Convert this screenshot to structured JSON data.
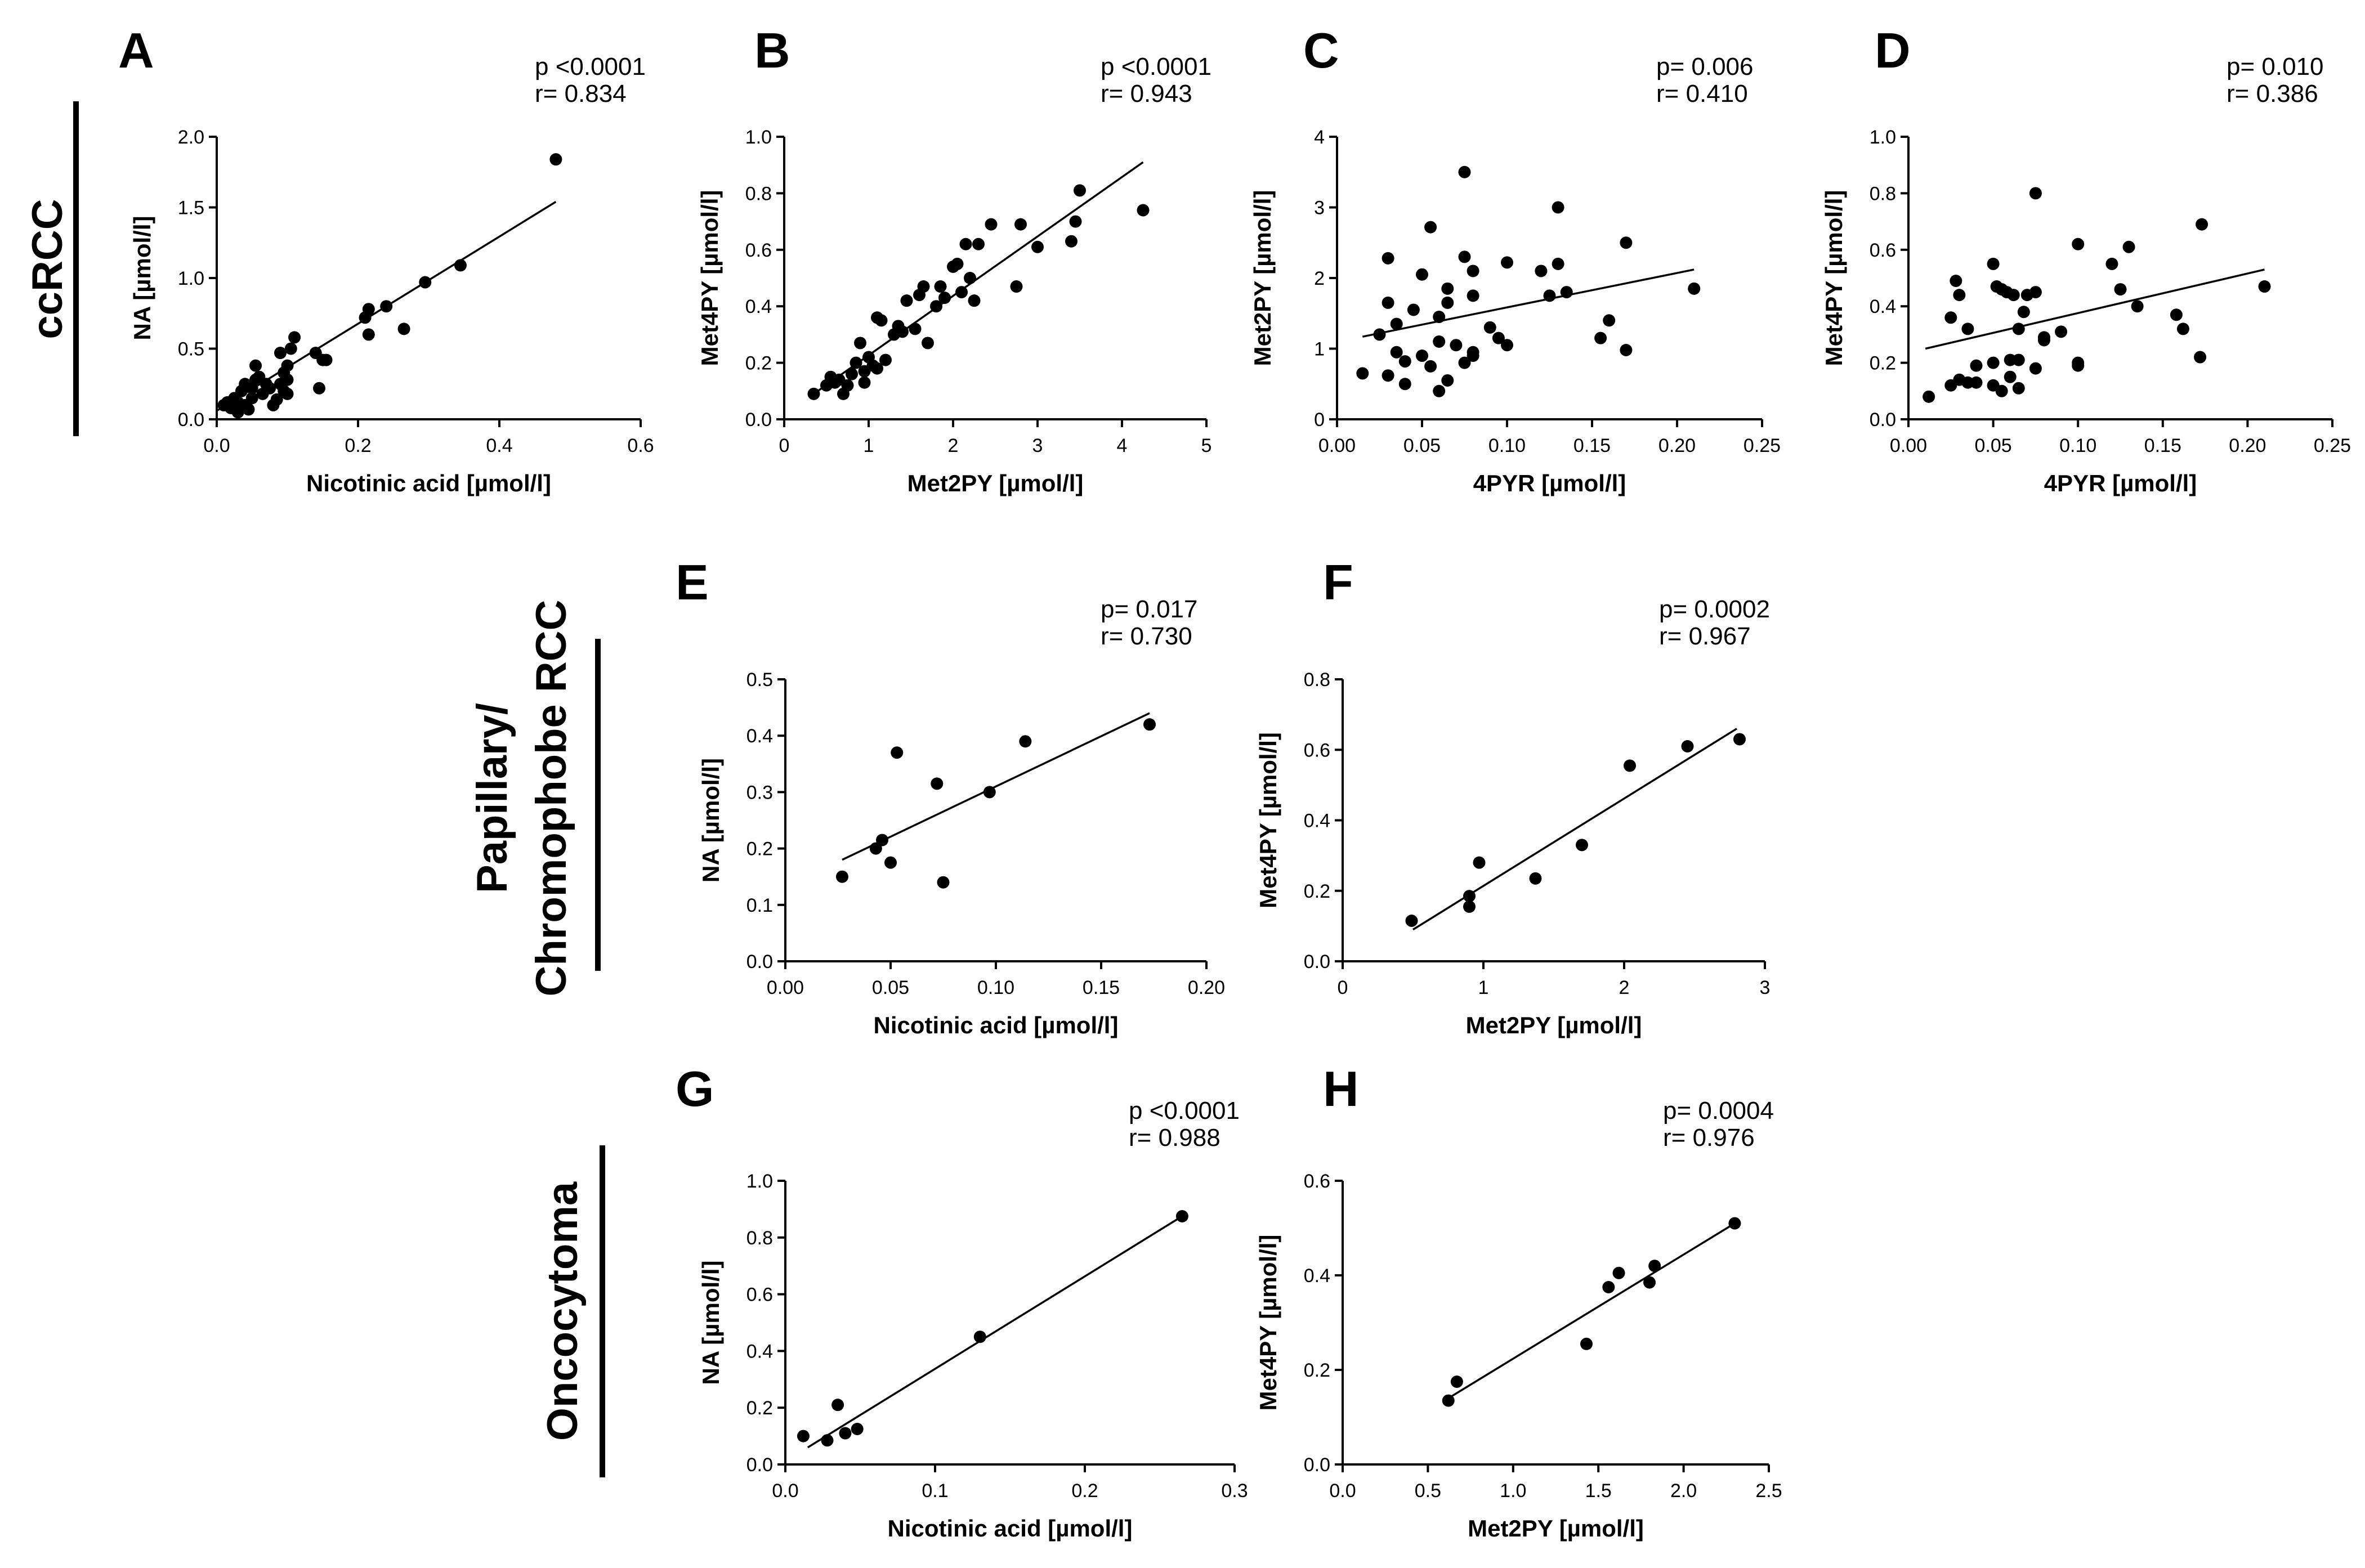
{
  "group_labels": [
    "ccRCC",
    "Papillary/",
    "Chromophobe RCC",
    "Oncocytoma"
  ],
  "chart_data": [
    {
      "id": "A",
      "type": "scatter",
      "letter": "A",
      "stat_p": "p <0.0001",
      "stat_r": "r= 0.834",
      "xlabel": "Nicotinic acid [µmol/l]",
      "ylabel": "NA [µmol/l]",
      "xlim": [
        0,
        0.6
      ],
      "ylim": [
        0,
        2.0
      ],
      "xticks": [
        0,
        0.2,
        0.4,
        0.6
      ],
      "xtick_labels": [
        "0.0",
        "0.2",
        "0.4",
        "0.6"
      ],
      "yticks": [
        0,
        0.5,
        1.0,
        1.5,
        2.0
      ],
      "ytick_labels": [
        "0.0",
        "0.5",
        "1.0",
        "1.5",
        "2.0"
      ],
      "fit": [
        [
          0.0,
          0.06
        ],
        [
          0.48,
          1.54
        ]
      ],
      "points": [
        [
          0.01,
          0.1
        ],
        [
          0.015,
          0.12
        ],
        [
          0.02,
          0.08
        ],
        [
          0.025,
          0.15
        ],
        [
          0.03,
          0.05
        ],
        [
          0.03,
          0.12
        ],
        [
          0.035,
          0.2
        ],
        [
          0.04,
          0.1
        ],
        [
          0.04,
          0.25
        ],
        [
          0.045,
          0.07
        ],
        [
          0.05,
          0.15
        ],
        [
          0.05,
          0.22
        ],
        [
          0.055,
          0.28
        ],
        [
          0.055,
          0.38
        ],
        [
          0.06,
          0.3
        ],
        [
          0.065,
          0.18
        ],
        [
          0.07,
          0.25
        ],
        [
          0.075,
          0.22
        ],
        [
          0.08,
          0.1
        ],
        [
          0.085,
          0.14
        ],
        [
          0.09,
          0.25
        ],
        [
          0.09,
          0.47
        ],
        [
          0.095,
          0.2
        ],
        [
          0.095,
          0.33
        ],
        [
          0.1,
          0.18
        ],
        [
          0.1,
          0.28
        ],
        [
          0.1,
          0.38
        ],
        [
          0.105,
          0.5
        ],
        [
          0.11,
          0.58
        ],
        [
          0.14,
          0.47
        ],
        [
          0.145,
          0.22
        ],
        [
          0.15,
          0.42
        ],
        [
          0.155,
          0.42
        ],
        [
          0.21,
          0.72
        ],
        [
          0.215,
          0.78
        ],
        [
          0.215,
          0.6
        ],
        [
          0.24,
          0.8
        ],
        [
          0.265,
          0.64
        ],
        [
          0.295,
          0.97
        ],
        [
          0.345,
          1.09
        ],
        [
          0.48,
          1.84
        ]
      ]
    },
    {
      "id": "B",
      "type": "scatter",
      "letter": "B",
      "stat_p": "p <0.0001",
      "stat_r": "r= 0.943",
      "xlabel": "Met2PY [µmol/l]",
      "ylabel": "Met4PY [µmol/l]",
      "xlim": [
        0,
        5
      ],
      "ylim": [
        0,
        1.0
      ],
      "xticks": [
        0,
        1,
        2,
        3,
        4,
        5
      ],
      "xtick_labels": [
        "0",
        "1",
        "2",
        "3",
        "4",
        "5"
      ],
      "yticks": [
        0,
        0.2,
        0.4,
        0.6,
        0.8,
        1.0
      ],
      "ytick_labels": [
        "0.0",
        "0.2",
        "0.4",
        "0.6",
        "0.8",
        "1.0"
      ],
      "fit": [
        [
          0.35,
          0.09
        ],
        [
          4.25,
          0.91
        ]
      ],
      "points": [
        [
          0.35,
          0.09
        ],
        [
          0.5,
          0.12
        ],
        [
          0.55,
          0.15
        ],
        [
          0.6,
          0.13
        ],
        [
          0.65,
          0.14
        ],
        [
          0.7,
          0.09
        ],
        [
          0.75,
          0.12
        ],
        [
          0.8,
          0.16
        ],
        [
          0.85,
          0.2
        ],
        [
          0.9,
          0.27
        ],
        [
          0.95,
          0.17
        ],
        [
          0.95,
          0.13
        ],
        [
          1.0,
          0.22
        ],
        [
          1.05,
          0.19
        ],
        [
          1.1,
          0.18
        ],
        [
          1.1,
          0.36
        ],
        [
          1.15,
          0.35
        ],
        [
          1.2,
          0.21
        ],
        [
          1.3,
          0.3
        ],
        [
          1.35,
          0.33
        ],
        [
          1.4,
          0.31
        ],
        [
          1.45,
          0.42
        ],
        [
          1.55,
          0.32
        ],
        [
          1.6,
          0.44
        ],
        [
          1.65,
          0.47
        ],
        [
          1.7,
          0.27
        ],
        [
          1.8,
          0.4
        ],
        [
          1.85,
          0.47
        ],
        [
          1.9,
          0.43
        ],
        [
          2.0,
          0.54
        ],
        [
          2.05,
          0.55
        ],
        [
          2.1,
          0.45
        ],
        [
          2.15,
          0.62
        ],
        [
          2.2,
          0.5
        ],
        [
          2.25,
          0.42
        ],
        [
          2.3,
          0.62
        ],
        [
          2.45,
          0.69
        ],
        [
          2.75,
          0.47
        ],
        [
          2.8,
          0.69
        ],
        [
          3.0,
          0.61
        ],
        [
          3.4,
          0.63
        ],
        [
          3.45,
          0.7
        ],
        [
          3.5,
          0.81
        ],
        [
          4.25,
          0.74
        ]
      ]
    },
    {
      "id": "C",
      "type": "scatter",
      "letter": "C",
      "stat_p": "p= 0.006",
      "stat_r": "r= 0.410",
      "xlabel": "4PYR [µmol/l]",
      "ylabel": "Met2PY [µmol/l]",
      "xlim": [
        0,
        0.25
      ],
      "ylim": [
        0,
        4
      ],
      "xticks": [
        0,
        0.05,
        0.1,
        0.15,
        0.2,
        0.25
      ],
      "xtick_labels": [
        "0.00",
        "0.05",
        "0.10",
        "0.15",
        "0.20",
        "0.25"
      ],
      "yticks": [
        0,
        1,
        2,
        3,
        4
      ],
      "ytick_labels": [
        "0",
        "1",
        "2",
        "3",
        "4"
      ],
      "fit": [
        [
          0.015,
          1.17
        ],
        [
          0.21,
          2.12
        ]
      ],
      "points": [
        [
          0.015,
          0.65
        ],
        [
          0.025,
          1.2
        ],
        [
          0.03,
          0.62
        ],
        [
          0.03,
          1.65
        ],
        [
          0.03,
          2.28
        ],
        [
          0.035,
          0.95
        ],
        [
          0.035,
          1.35
        ],
        [
          0.04,
          0.82
        ],
        [
          0.04,
          0.5
        ],
        [
          0.045,
          1.55
        ],
        [
          0.05,
          2.05
        ],
        [
          0.05,
          0.9
        ],
        [
          0.055,
          0.75
        ],
        [
          0.055,
          2.72
        ],
        [
          0.06,
          0.4
        ],
        [
          0.06,
          1.1
        ],
        [
          0.06,
          1.45
        ],
        [
          0.065,
          1.65
        ],
        [
          0.065,
          0.55
        ],
        [
          0.065,
          1.85
        ],
        [
          0.07,
          1.05
        ],
        [
          0.075,
          2.3
        ],
        [
          0.075,
          3.5
        ],
        [
          0.075,
          0.8
        ],
        [
          0.08,
          2.1
        ],
        [
          0.08,
          0.95
        ],
        [
          0.08,
          0.9
        ],
        [
          0.08,
          1.75
        ],
        [
          0.09,
          1.3
        ],
        [
          0.095,
          1.15
        ],
        [
          0.1,
          1.05
        ],
        [
          0.1,
          2.22
        ],
        [
          0.12,
          2.1
        ],
        [
          0.125,
          1.75
        ],
        [
          0.13,
          3.0
        ],
        [
          0.13,
          2.2
        ],
        [
          0.135,
          1.8
        ],
        [
          0.155,
          1.15
        ],
        [
          0.16,
          1.4
        ],
        [
          0.17,
          0.98
        ],
        [
          0.17,
          2.5
        ],
        [
          0.21,
          1.85
        ]
      ]
    },
    {
      "id": "D",
      "type": "scatter",
      "letter": "D",
      "stat_p": "p= 0.010",
      "stat_r": "r= 0.386",
      "xlabel": "4PYR [µmol/l]",
      "ylabel": "Met4PY [µmol/l]",
      "xlim": [
        0,
        0.25
      ],
      "ylim": [
        0,
        1.0
      ],
      "xticks": [
        0,
        0.05,
        0.1,
        0.15,
        0.2,
        0.25
      ],
      "xtick_labels": [
        "0.00",
        "0.05",
        "0.10",
        "0.15",
        "0.20",
        "0.25"
      ],
      "yticks": [
        0,
        0.2,
        0.4,
        0.6,
        0.8,
        1.0
      ],
      "ytick_labels": [
        "0.0",
        "0.2",
        "0.4",
        "0.6",
        "0.8",
        "1.0"
      ],
      "fit": [
        [
          0.01,
          0.25
        ],
        [
          0.21,
          0.53
        ]
      ],
      "points": [
        [
          0.012,
          0.08
        ],
        [
          0.025,
          0.36
        ],
        [
          0.025,
          0.12
        ],
        [
          0.028,
          0.49
        ],
        [
          0.03,
          0.44
        ],
        [
          0.03,
          0.14
        ],
        [
          0.035,
          0.32
        ],
        [
          0.035,
          0.13
        ],
        [
          0.04,
          0.13
        ],
        [
          0.04,
          0.19
        ],
        [
          0.05,
          0.55
        ],
        [
          0.05,
          0.12
        ],
        [
          0.05,
          0.2
        ],
        [
          0.052,
          0.47
        ],
        [
          0.055,
          0.46
        ],
        [
          0.055,
          0.1
        ],
        [
          0.058,
          0.45
        ],
        [
          0.06,
          0.15
        ],
        [
          0.06,
          0.21
        ],
        [
          0.062,
          0.44
        ],
        [
          0.065,
          0.21
        ],
        [
          0.065,
          0.11
        ],
        [
          0.065,
          0.32
        ],
        [
          0.068,
          0.38
        ],
        [
          0.07,
          0.44
        ],
        [
          0.075,
          0.45
        ],
        [
          0.075,
          0.18
        ],
        [
          0.075,
          0.8
        ],
        [
          0.08,
          0.28
        ],
        [
          0.08,
          0.29
        ],
        [
          0.09,
          0.31
        ],
        [
          0.1,
          0.62
        ],
        [
          0.1,
          0.19
        ],
        [
          0.1,
          0.2
        ],
        [
          0.12,
          0.55
        ],
        [
          0.125,
          0.46
        ],
        [
          0.13,
          0.61
        ],
        [
          0.135,
          0.4
        ],
        [
          0.158,
          0.37
        ],
        [
          0.162,
          0.32
        ],
        [
          0.172,
          0.22
        ],
        [
          0.173,
          0.69
        ],
        [
          0.21,
          0.47
        ]
      ]
    },
    {
      "id": "E",
      "type": "scatter",
      "letter": "E",
      "stat_p": "p= 0.017",
      "stat_r": "r= 0.730",
      "xlabel": "Nicotinic acid [µmol/l]",
      "ylabel": "NA [µmol/l]",
      "xlim": [
        0,
        0.2
      ],
      "ylim": [
        0,
        0.5
      ],
      "xticks": [
        0,
        0.05,
        0.1,
        0.15,
        0.2
      ],
      "xtick_labels": [
        "0.00",
        "0.05",
        "0.10",
        "0.15",
        "0.20"
      ],
      "yticks": [
        0,
        0.1,
        0.2,
        0.3,
        0.4,
        0.5
      ],
      "ytick_labels": [
        "0.0",
        "0.1",
        "0.2",
        "0.3",
        "0.4",
        "0.5"
      ],
      "fit": [
        [
          0.027,
          0.18
        ],
        [
          0.173,
          0.44
        ]
      ],
      "points": [
        [
          0.027,
          0.15
        ],
        [
          0.043,
          0.2
        ],
        [
          0.046,
          0.215
        ],
        [
          0.05,
          0.175
        ],
        [
          0.053,
          0.37
        ],
        [
          0.072,
          0.315
        ],
        [
          0.075,
          0.14
        ],
        [
          0.097,
          0.3
        ],
        [
          0.114,
          0.39
        ],
        [
          0.173,
          0.42
        ]
      ]
    },
    {
      "id": "F",
      "type": "scatter",
      "letter": "F",
      "stat_p": "p= 0.0002",
      "stat_r": "r= 0.967",
      "xlabel": "Met2PY [µmol/l]",
      "ylabel": "Met4PY [µmol/l]",
      "xlim": [
        0,
        3
      ],
      "ylim": [
        0,
        0.8
      ],
      "xticks": [
        0,
        1,
        2,
        3
      ],
      "xtick_labels": [
        "0",
        "1",
        "2",
        "3"
      ],
      "yticks": [
        0,
        0.2,
        0.4,
        0.6,
        0.8
      ],
      "ytick_labels": [
        "0.0",
        "0.2",
        "0.4",
        "0.6",
        "0.8"
      ],
      "fit": [
        [
          0.5,
          0.09
        ],
        [
          2.8,
          0.66
        ]
      ],
      "points": [
        [
          0.49,
          0.115
        ],
        [
          0.9,
          0.155
        ],
        [
          0.9,
          0.185
        ],
        [
          0.97,
          0.28
        ],
        [
          1.37,
          0.235
        ],
        [
          1.7,
          0.33
        ],
        [
          2.04,
          0.555
        ],
        [
          2.45,
          0.61
        ],
        [
          2.82,
          0.63
        ]
      ]
    },
    {
      "id": "G",
      "type": "scatter",
      "letter": "G",
      "stat_p": "p <0.0001",
      "stat_r": "r= 0.988",
      "xlabel": "Nicotinic acid [µmol/l]",
      "ylabel": "NA [µmol/l]",
      "xlim": [
        0,
        0.3
      ],
      "ylim": [
        0,
        1.0
      ],
      "xticks": [
        0,
        0.1,
        0.2,
        0.3
      ],
      "xtick_labels": [
        "0.0",
        "0.1",
        "0.2",
        "0.3"
      ],
      "yticks": [
        0,
        0.2,
        0.4,
        0.6,
        0.8,
        1.0
      ],
      "ytick_labels": [
        "0.0",
        "0.2",
        "0.4",
        "0.6",
        "0.8",
        "1.0"
      ],
      "fit": [
        [
          0.015,
          0.06
        ],
        [
          0.265,
          0.875
        ]
      ],
      "points": [
        [
          0.012,
          0.1
        ],
        [
          0.028,
          0.085
        ],
        [
          0.035,
          0.21
        ],
        [
          0.04,
          0.11
        ],
        [
          0.048,
          0.125
        ],
        [
          0.13,
          0.45
        ],
        [
          0.265,
          0.875
        ]
      ]
    },
    {
      "id": "H",
      "type": "scatter",
      "letter": "H",
      "stat_p": "p= 0.0004",
      "stat_r": "r= 0.976",
      "xlabel": "Met2PY [µmol/l]",
      "ylabel": "Met4PY [µmol/l]",
      "xlim": [
        0,
        2.5
      ],
      "ylim": [
        0,
        0.6
      ],
      "xticks": [
        0,
        0.5,
        1.0,
        1.5,
        2.0,
        2.5
      ],
      "xtick_labels": [
        "0.0",
        "0.5",
        "1.0",
        "1.5",
        "2.0",
        "2.5"
      ],
      "yticks": [
        0,
        0.2,
        0.4,
        0.6
      ],
      "ytick_labels": [
        "0.0",
        "0.2",
        "0.4",
        "0.6"
      ],
      "fit": [
        [
          0.62,
          0.14
        ],
        [
          2.3,
          0.51
        ]
      ],
      "points": [
        [
          0.62,
          0.135
        ],
        [
          0.67,
          0.175
        ],
        [
          1.43,
          0.255
        ],
        [
          1.56,
          0.375
        ],
        [
          1.62,
          0.405
        ],
        [
          1.8,
          0.385
        ],
        [
          1.83,
          0.42
        ],
        [
          2.3,
          0.51
        ]
      ]
    }
  ]
}
